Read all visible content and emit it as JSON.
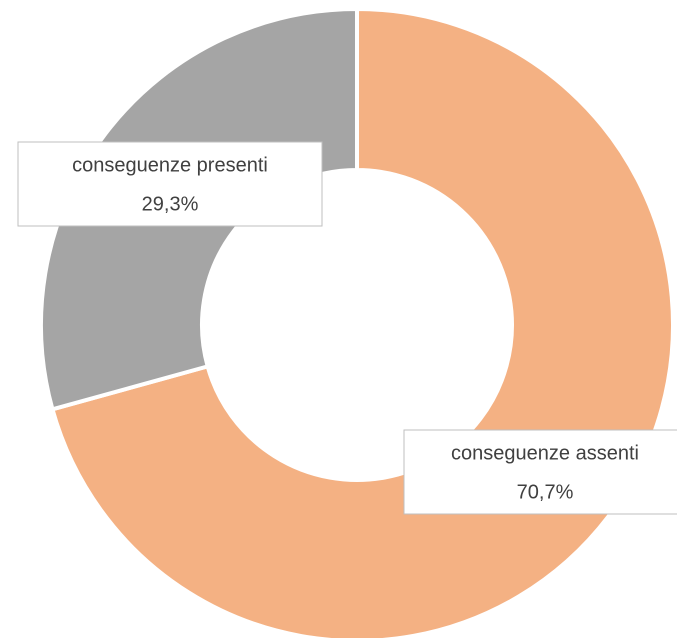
{
  "chart_data": {
    "type": "donut",
    "categories": [
      "conseguenze assenti",
      "conseguenze presenti"
    ],
    "values": [
      70.7,
      29.3
    ],
    "value_labels": [
      "70,7%",
      "29,3%"
    ],
    "colors": [
      "#F4B183",
      "#A5A5A5"
    ]
  }
}
